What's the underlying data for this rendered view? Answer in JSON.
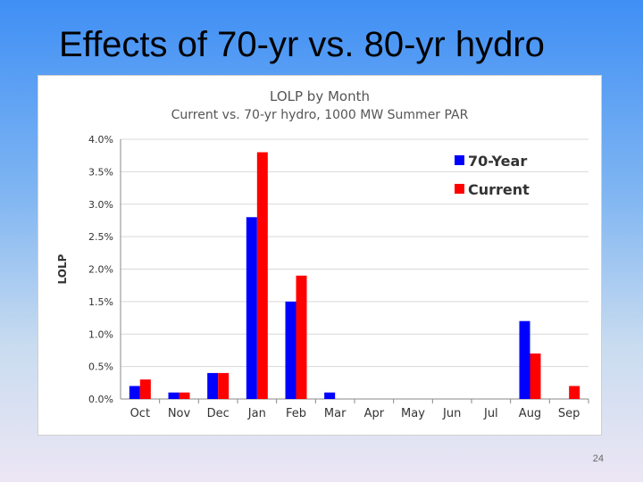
{
  "slide": {
    "title": "Effects of 70-yr vs. 80-yr hydro",
    "page_number": "24"
  },
  "colors": {
    "series_70_year": "#0000ff",
    "series_current": "#ff0000",
    "gridline": "#d9d9d9"
  },
  "chart_data": {
    "type": "bar",
    "title": "LOLP by Month",
    "subtitle": "Current vs. 70-yr hydro, 1000 MW Summer PAR",
    "xlabel": "",
    "ylabel": "LOLP",
    "ylim": [
      0,
      4.0
    ],
    "y_tick_values": [
      0,
      0.5,
      1.0,
      1.5,
      2.0,
      2.5,
      3.0,
      3.5,
      4.0
    ],
    "y_tick_labels": [
      "0.0%",
      "0.5%",
      "1.0%",
      "1.5%",
      "2.0%",
      "2.5%",
      "3.0%",
      "3.5%",
      "4.0%"
    ],
    "grid": true,
    "legend_position": "top-right",
    "categories": [
      "Oct",
      "Nov",
      "Dec",
      "Jan",
      "Feb",
      "Mar",
      "Apr",
      "May",
      "Jun",
      "Jul",
      "Aug",
      "Sep"
    ],
    "series": [
      {
        "name": "70-Year",
        "color": "#0000ff",
        "values": [
          0.2,
          0.1,
          0.4,
          2.8,
          1.5,
          0.1,
          0,
          0,
          0,
          0,
          1.2,
          0
        ]
      },
      {
        "name": "Current",
        "color": "#ff0000",
        "values": [
          0.3,
          0.1,
          0.4,
          3.8,
          1.9,
          0,
          0,
          0,
          0,
          0,
          0.7,
          0.2
        ]
      }
    ]
  }
}
